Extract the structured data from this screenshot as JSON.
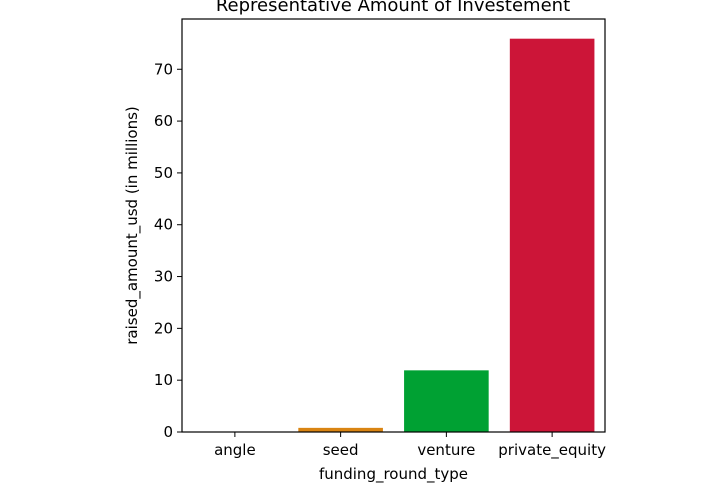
{
  "chart_data": {
    "type": "bar",
    "title": "Representative Amount of Investement",
    "xlabel": "funding_round_type",
    "ylabel": "raised_amount_usd (in millions)",
    "categories": [
      "angle",
      "seed",
      "venture",
      "private_equity"
    ],
    "values": [
      0.0,
      0.8,
      11.9,
      75.9
    ],
    "colors": [
      "#1f77b4",
      "#d98412",
      "#00a133",
      "#cc1538"
    ],
    "ylim": [
      0,
      79.7
    ],
    "yticks": [
      0,
      10,
      20,
      30,
      40,
      50,
      60,
      70
    ],
    "grid": false,
    "legend": "none"
  }
}
